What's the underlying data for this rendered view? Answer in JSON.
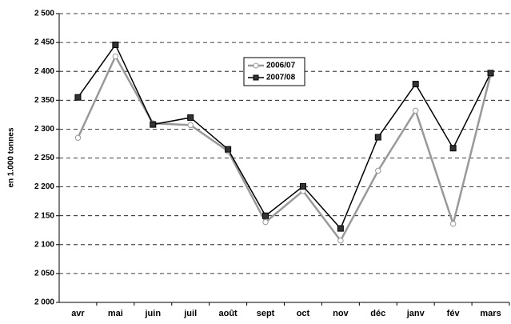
{
  "chart_data": {
    "type": "line",
    "y_label": "en 1.000 tonnes",
    "categories": [
      "avr",
      "mai",
      "juin",
      "juil",
      "août",
      "sept",
      "oct",
      "nov",
      "déc",
      "janv",
      "fév",
      "mars"
    ],
    "series": [
      {
        "name": "2006/07",
        "color": "#999999",
        "marker": "circle",
        "values": [
          2285,
          2426,
          2310,
          2307,
          2262,
          2139,
          2193,
          2107,
          2228,
          2332,
          2136,
          2395
        ]
      },
      {
        "name": "2007/08",
        "color": "#000000",
        "marker": "square",
        "values": [
          2355,
          2446,
          2308,
          2320,
          2265,
          2150,
          2201,
          2128,
          2286,
          2378,
          2267,
          2397
        ]
      }
    ],
    "ylim": [
      2000,
      2500
    ],
    "yticks": [
      {
        "value": 2000,
        "label": "2 000"
      },
      {
        "value": 2050,
        "label": "2 050"
      },
      {
        "value": 2100,
        "label": "2 100"
      },
      {
        "value": 2150,
        "label": "2 150"
      },
      {
        "value": 2200,
        "label": "2 200"
      },
      {
        "value": 2250,
        "label": "2 250"
      },
      {
        "value": 2300,
        "label": "2 300"
      },
      {
        "value": 2350,
        "label": "2 350"
      },
      {
        "value": 2400,
        "label": "2 400"
      },
      {
        "value": 2450,
        "label": "2 450"
      },
      {
        "value": 2500,
        "label": "2 500"
      }
    ],
    "grid": true
  }
}
